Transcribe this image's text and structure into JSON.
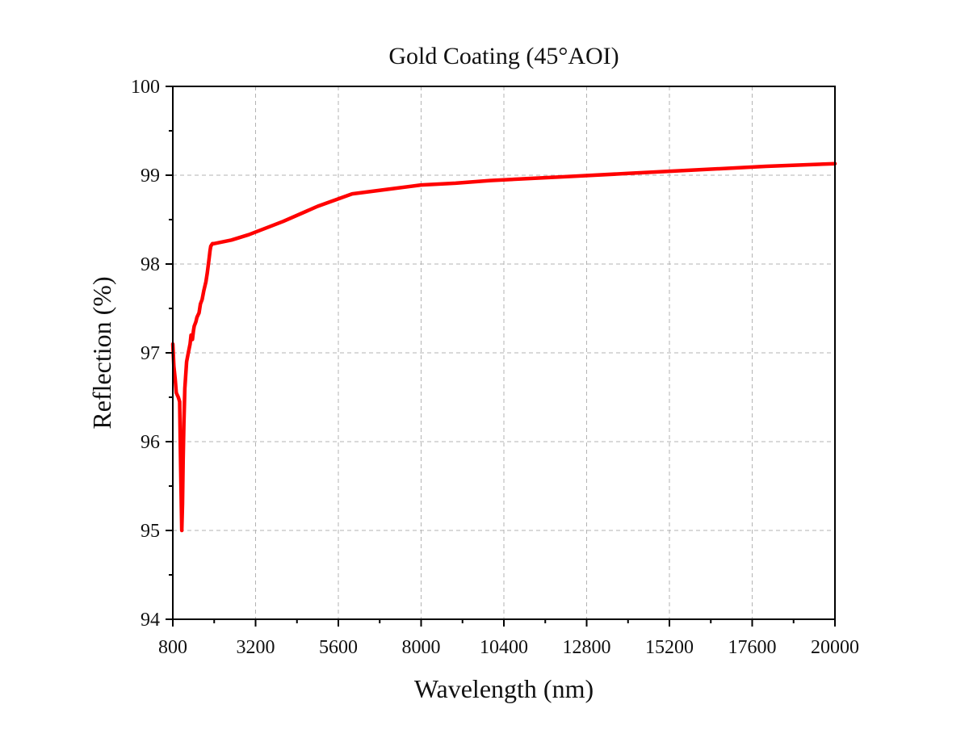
{
  "chart_data": {
    "type": "line",
    "title": "Gold Coating (45°AOI)",
    "xlabel": "Wavelength (nm)",
    "ylabel": "Reflection (%)",
    "xlim": [
      800,
      20000
    ],
    "ylim": [
      94,
      100
    ],
    "x_ticks": [
      800,
      3200,
      5600,
      8000,
      10400,
      12800,
      15200,
      17600,
      20000
    ],
    "y_ticks": [
      94,
      95,
      96,
      97,
      98,
      99,
      100
    ],
    "grid": true,
    "colors": {
      "series": "#ff0000",
      "axes": "#000000",
      "grid": "#b3b3b3"
    },
    "series": [
      {
        "x": [
          800,
          830,
          870,
          900,
          960,
          1000,
          1020,
          1060,
          1080,
          1100,
          1120,
          1150,
          1200,
          1250,
          1300,
          1330,
          1370,
          1400,
          1420,
          1470,
          1500,
          1560,
          1600,
          1650,
          1700,
          1760,
          1800,
          1850,
          1880,
          1900,
          1950,
          2000,
          2500,
          3000,
          3600,
          4000,
          5000,
          6000,
          7000,
          8000,
          9000,
          10000,
          12000,
          14000,
          16000,
          18000,
          20000
        ],
        "y": [
          97.1,
          96.85,
          96.7,
          96.55,
          96.5,
          96.45,
          95.9,
          95.0,
          95.3,
          95.8,
          96.2,
          96.6,
          96.9,
          97.0,
          97.1,
          97.2,
          97.15,
          97.25,
          97.3,
          97.35,
          97.4,
          97.45,
          97.55,
          97.6,
          97.7,
          97.8,
          97.9,
          98.05,
          98.15,
          98.2,
          98.23,
          98.23,
          98.27,
          98.33,
          98.42,
          98.48,
          98.65,
          98.79,
          98.84,
          98.89,
          98.91,
          98.94,
          98.98,
          99.02,
          99.06,
          99.1,
          99.13
        ]
      }
    ]
  }
}
